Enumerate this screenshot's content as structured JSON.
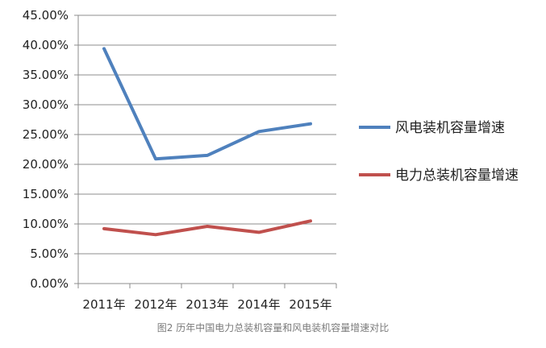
{
  "chart_data": {
    "type": "line",
    "categories": [
      "2011年",
      "2012年",
      "2013年",
      "2014年",
      "2015年"
    ],
    "ylim": [
      0,
      45
    ],
    "yticks": [
      "0.00%",
      "5.00%",
      "10.00%",
      "15.00%",
      "20.00%",
      "25.00%",
      "30.00%",
      "35.00%",
      "40.00%",
      "45.00%"
    ],
    "grid": true,
    "legend_position": "right",
    "series": [
      {
        "name": "风电装机容量增速",
        "color": "#4f81bd",
        "values": [
          39.4,
          20.9,
          21.5,
          25.5,
          26.8
        ]
      },
      {
        "name": "电力总装机容量增速",
        "color": "#c0504d",
        "values": [
          9.2,
          8.2,
          9.6,
          8.6,
          10.5
        ]
      }
    ]
  },
  "caption": "图2 历年中国电力总装机容量和风电装机容量增速对比"
}
